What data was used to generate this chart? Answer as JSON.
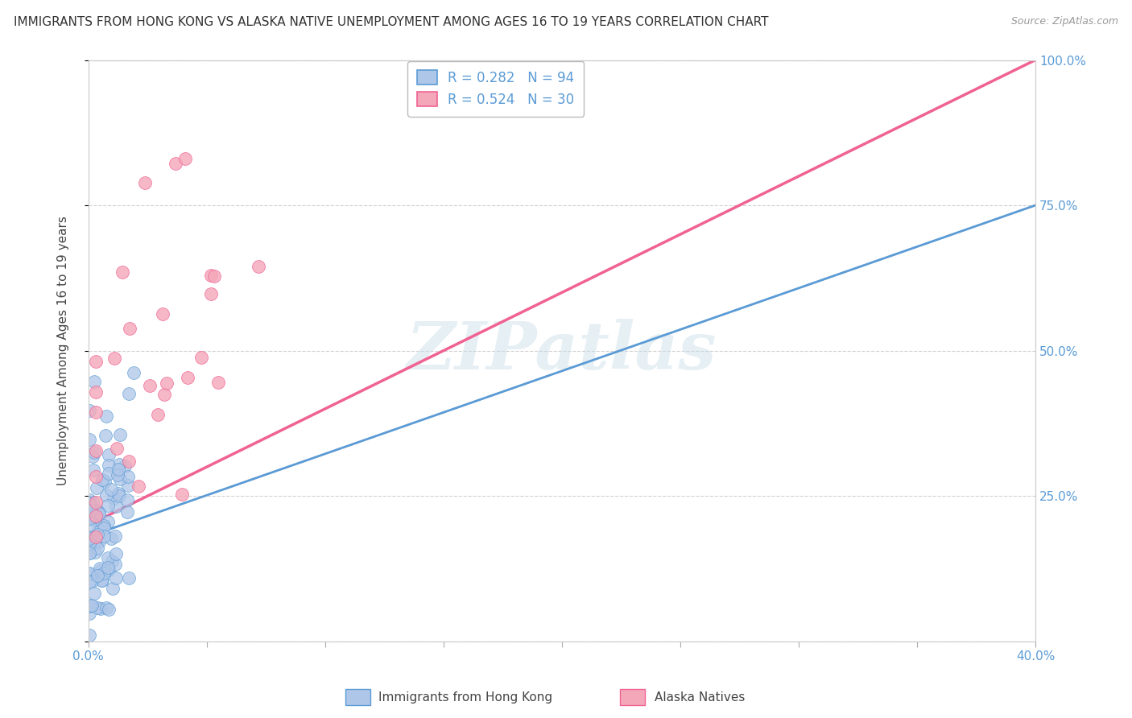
{
  "title": "IMMIGRANTS FROM HONG KONG VS ALASKA NATIVE UNEMPLOYMENT AMONG AGES 16 TO 19 YEARS CORRELATION CHART",
  "source_text": "Source: ZipAtlas.com",
  "ylabel": "Unemployment Among Ages 16 to 19 years",
  "xlim": [
    0.0,
    0.4
  ],
  "ylim": [
    0.0,
    1.0
  ],
  "xtick_positions": [
    0.0,
    0.05,
    0.1,
    0.15,
    0.2,
    0.25,
    0.3,
    0.35,
    0.4
  ],
  "xtick_labels": [
    "0.0%",
    "",
    "",
    "",
    "",
    "",
    "",
    "",
    "40.0%"
  ],
  "ytick_positions": [
    0.0,
    0.25,
    0.5,
    0.75,
    1.0
  ],
  "right_ytick_positions": [
    0.25,
    0.5,
    0.75,
    1.0
  ],
  "right_ytick_labels": [
    "25.0%",
    "50.0%",
    "75.0%",
    "100.0%"
  ],
  "legend_entries": [
    {
      "label": "R = 0.282   N = 94",
      "face_color": "#aec6e8",
      "edge_color": "#5b9bd5"
    },
    {
      "label": "R = 0.524   N = 30",
      "face_color": "#f4a7b9",
      "edge_color": "#f06292"
    }
  ],
  "bottom_legend": [
    {
      "label": "Immigrants from Hong Kong",
      "face_color": "#aec6e8",
      "edge_color": "#5b9bd5"
    },
    {
      "label": "Alaska Natives",
      "face_color": "#f4a7b9",
      "edge_color": "#f06292"
    }
  ],
  "series1_color": "#aec6e8",
  "series2_color": "#f4a7b9",
  "trend1_color_solid": "#5b9bd5",
  "trend2_color_solid": "#f06292",
  "trend_dashed_color": "#aaaacc",
  "grid_color": "#cccccc",
  "background_color": "#ffffff",
  "watermark": "ZIPatlas",
  "watermark_color": "#c8dce8",
  "title_color": "#333333",
  "title_fontsize": 11,
  "axis_label_color": "#444444",
  "tick_color_blue": "#5b9bd5",
  "series1_R": 0.282,
  "series1_N": 94,
  "series2_R": 0.524,
  "series2_N": 30
}
